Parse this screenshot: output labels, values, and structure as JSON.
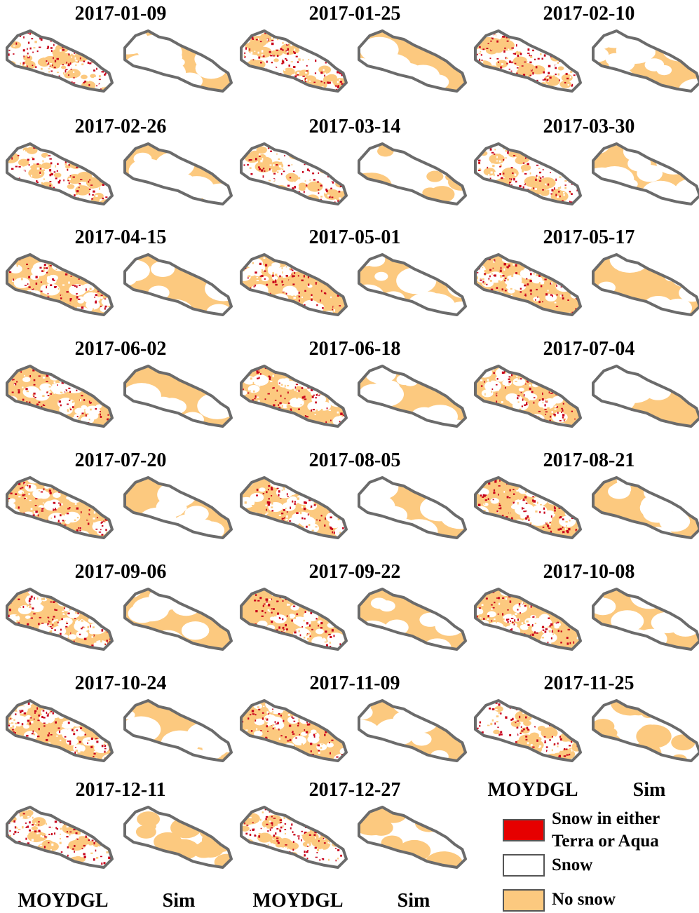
{
  "panels": [
    {
      "date": "2017-01-09"
    },
    {
      "date": "2017-01-25"
    },
    {
      "date": "2017-02-10"
    },
    {
      "date": "2017-02-26"
    },
    {
      "date": "2017-03-14"
    },
    {
      "date": "2017-03-30"
    },
    {
      "date": "2017-04-15"
    },
    {
      "date": "2017-05-01"
    },
    {
      "date": "2017-05-17"
    },
    {
      "date": "2017-06-02"
    },
    {
      "date": "2017-06-18"
    },
    {
      "date": "2017-07-04"
    },
    {
      "date": "2017-07-20"
    },
    {
      "date": "2017-08-05"
    },
    {
      "date": "2017-08-21"
    },
    {
      "date": "2017-09-06"
    },
    {
      "date": "2017-09-22"
    },
    {
      "date": "2017-10-08"
    },
    {
      "date": "2017-10-24"
    },
    {
      "date": "2017-11-09"
    },
    {
      "date": "2017-11-25"
    },
    {
      "date": "2017-12-11"
    },
    {
      "date": "2017-12-27"
    }
  ],
  "bottom_labels": [
    "MOYDGL",
    "Sim",
    "MOYDGL",
    "Sim"
  ],
  "legend": {
    "headers": [
      "MOYDGL",
      "Sim"
    ],
    "items": [
      {
        "label": "Snow in either Terra or Aqua",
        "color": "#e60000"
      },
      {
        "label": "Snow",
        "color": "#ffffff"
      },
      {
        "label": "No snow",
        "color": "#fcc97f"
      }
    ]
  }
}
